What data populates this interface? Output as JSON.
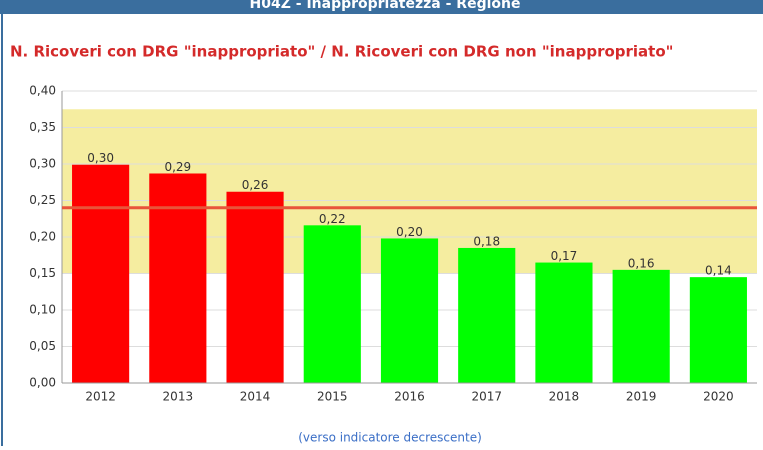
{
  "header": "H04Z - Inappropriatezza - Regione",
  "chart_data": {
    "type": "bar",
    "title": "N. Ricoveri con DRG \"inappropriato\" / N. Ricoveri con DRG non \"inappropriato\"",
    "categories": [
      "2012",
      "2013",
      "2014",
      "2015",
      "2016",
      "2017",
      "2018",
      "2019",
      "2020"
    ],
    "values": [
      0.299,
      0.287,
      0.262,
      0.216,
      0.198,
      0.185,
      0.165,
      0.155,
      0.145
    ],
    "value_labels": [
      "0,30",
      "0,29",
      "0,26",
      "0,22",
      "0,20",
      "0,18",
      "0,17",
      "0,16",
      "0,14"
    ],
    "colors": [
      "#ff0000",
      "#ff0000",
      "#ff0000",
      "#00ff00",
      "#00ff00",
      "#00ff00",
      "#00ff00",
      "#00ff00",
      "#00ff00"
    ],
    "ylim": [
      0,
      0.4
    ],
    "yticks": [
      {
        "value": 0,
        "label": "0,00"
      },
      {
        "value": 0.05,
        "label": "0,05"
      },
      {
        "value": 0.1,
        "label": "0,10"
      },
      {
        "value": 0.15,
        "label": "0,15"
      },
      {
        "value": 0.2,
        "label": "0,20"
      },
      {
        "value": 0.25,
        "label": "0,25"
      },
      {
        "value": 0.3,
        "label": "0,30"
      },
      {
        "value": 0.35,
        "label": "0,35"
      },
      {
        "value": 0.4,
        "label": "0,40"
      }
    ],
    "band": [
      0.15,
      0.375
    ],
    "band_color": "#f5eda0",
    "threshold": 0.24,
    "threshold_color": "#e8553a",
    "grid": true,
    "note": "(verso indicatore decrescente)"
  }
}
